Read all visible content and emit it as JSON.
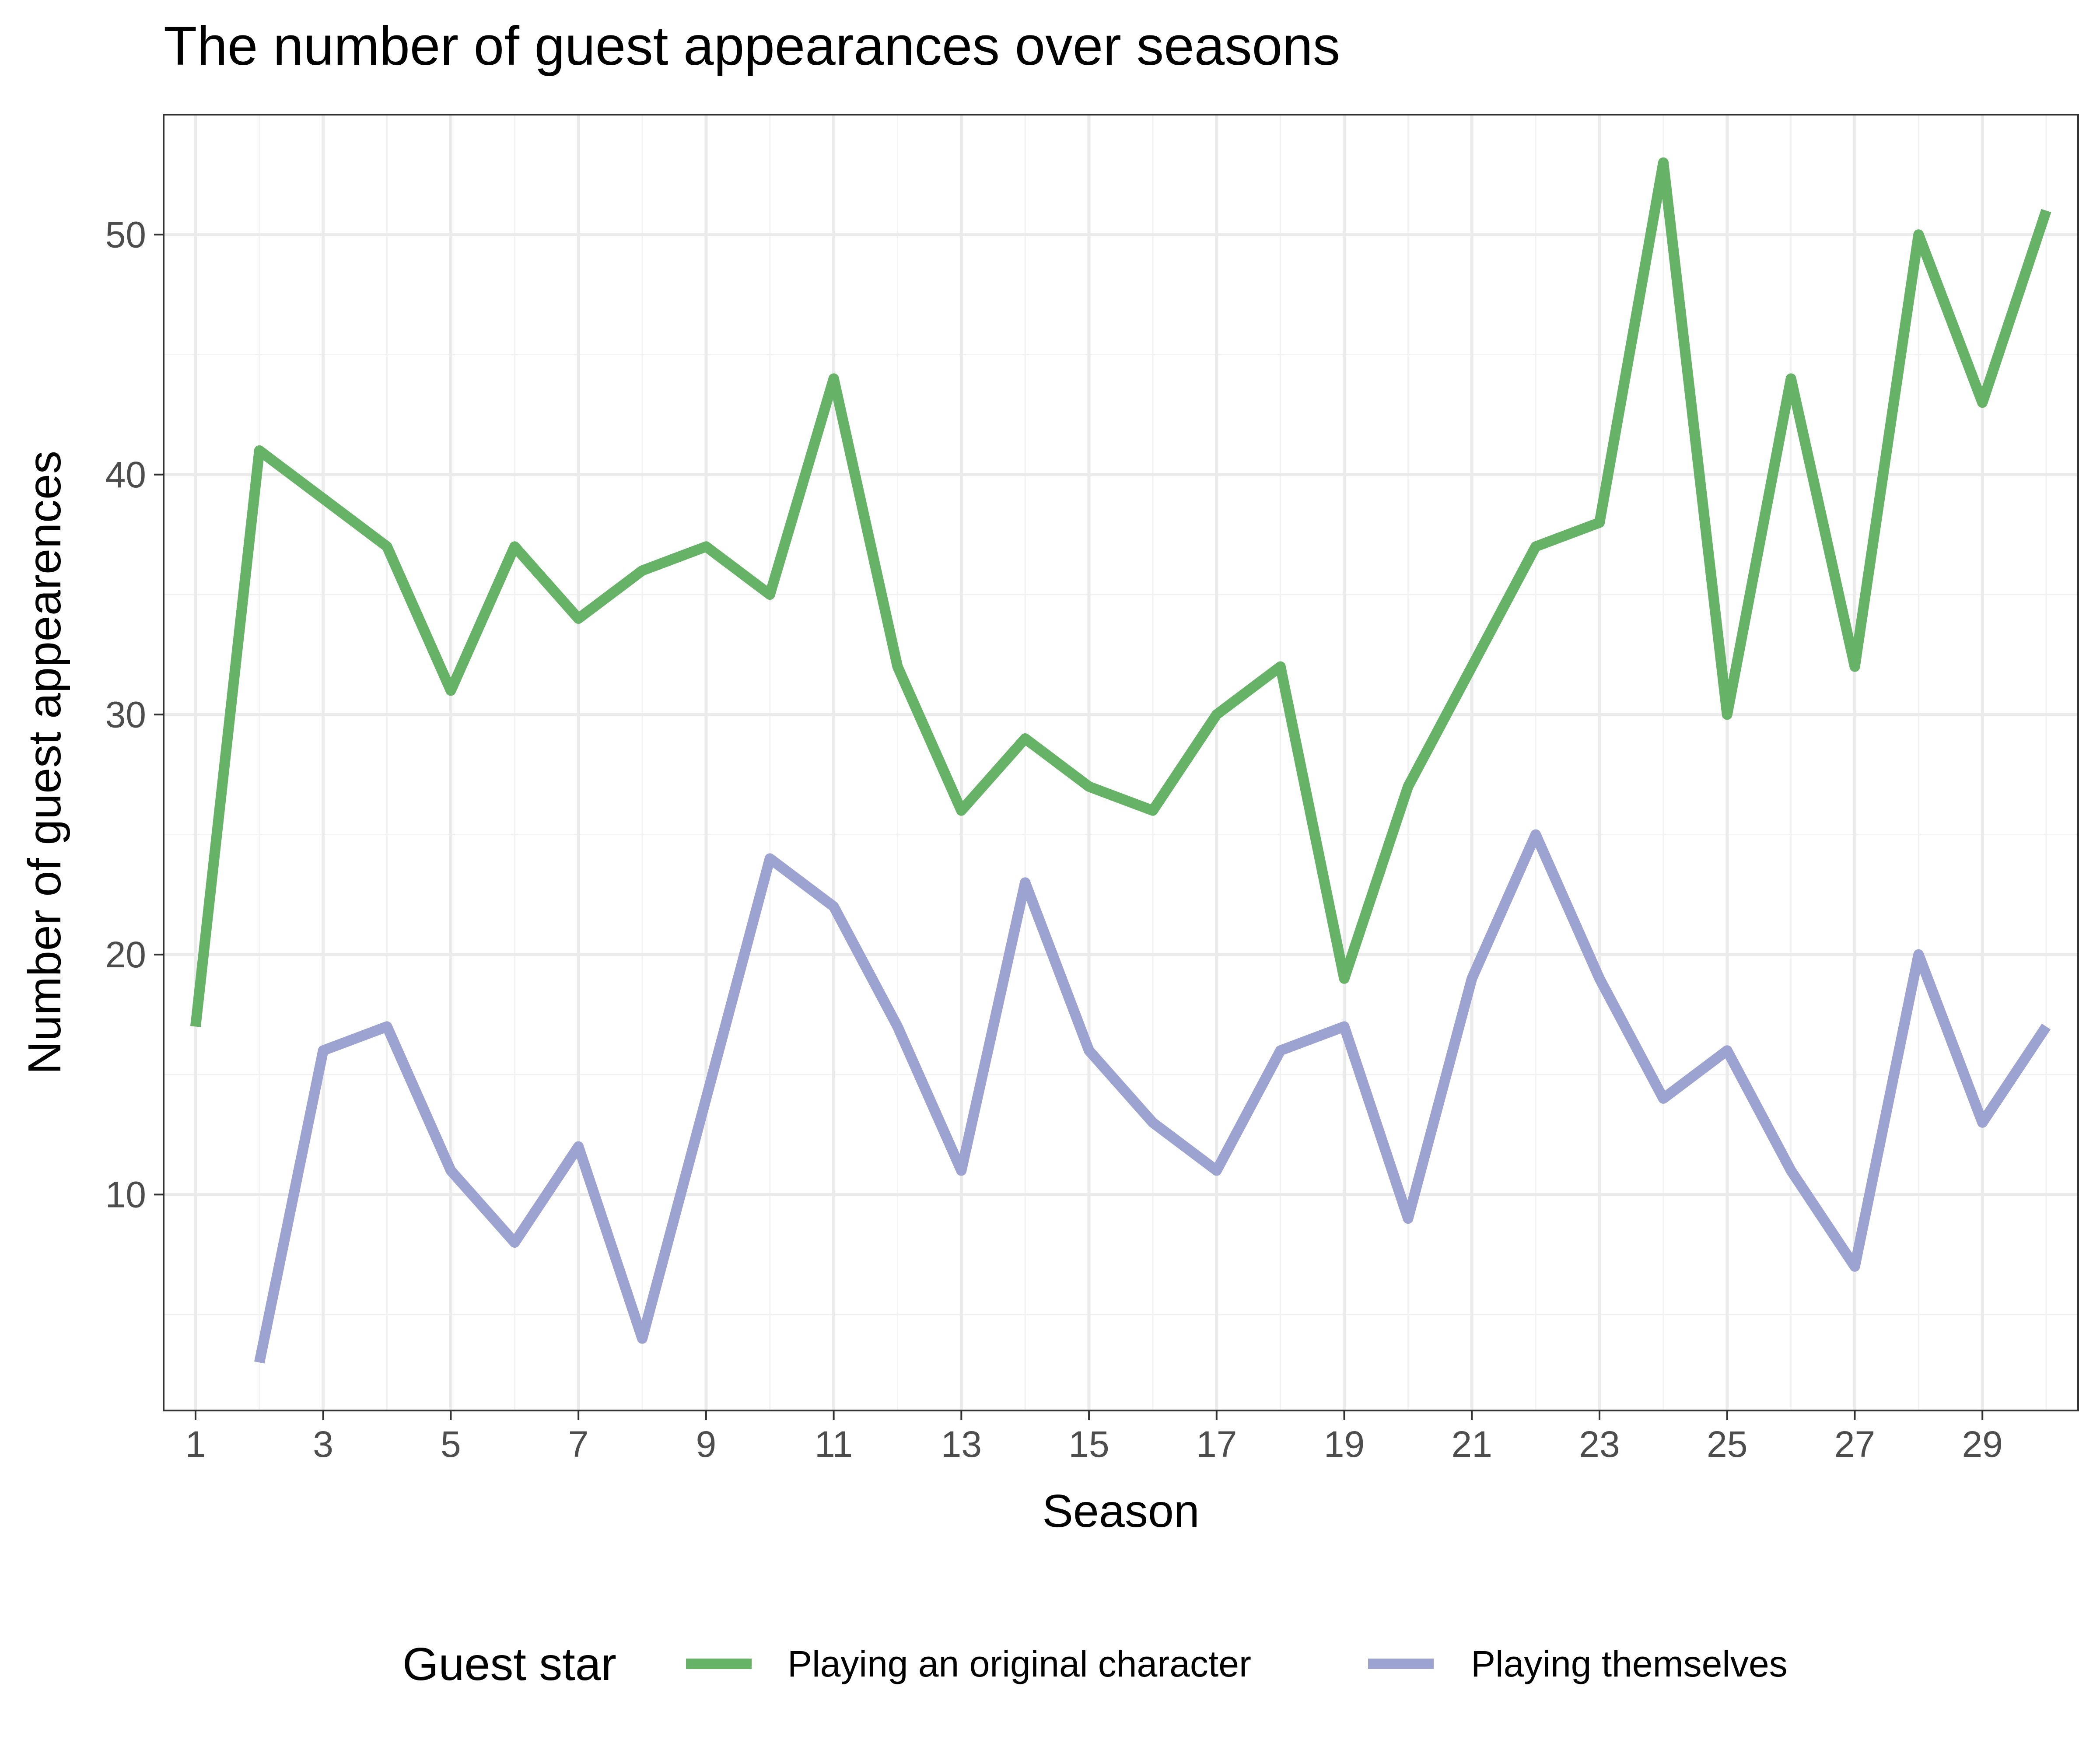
{
  "chart_data": {
    "type": "line",
    "title": "The number of guest appearances over seasons",
    "xlabel": "Season",
    "ylabel": "Number of guest appearences",
    "xlim": [
      0.5,
      30.5
    ],
    "ylim": [
      1,
      55
    ],
    "xticks": [
      1,
      3,
      5,
      7,
      9,
      11,
      13,
      15,
      17,
      19,
      21,
      23,
      25,
      27,
      29
    ],
    "yticks": [
      10,
      20,
      30,
      40,
      50
    ],
    "grid": true,
    "legend": {
      "title": "Guest star",
      "position": "bottom"
    },
    "series": [
      {
        "name": "Playing an original character",
        "color": "#66b266",
        "x": [
          1,
          2,
          3,
          4,
          5,
          6,
          7,
          8,
          9,
          10,
          11,
          12,
          13,
          14,
          15,
          16,
          17,
          18,
          19,
          20,
          21,
          22,
          23,
          24,
          25,
          26,
          27,
          28,
          29,
          30
        ],
        "y": [
          17,
          41,
          39,
          37,
          31,
          37,
          34,
          36,
          37,
          35,
          44,
          32,
          26,
          29,
          27,
          26,
          30,
          32,
          19,
          27,
          32,
          37,
          38,
          53,
          30,
          44,
          32,
          50,
          43,
          51
        ]
      },
      {
        "name": "Playing themselves",
        "color": "#9ca3d1",
        "x": [
          2,
          3,
          4,
          5,
          6,
          7,
          8,
          9,
          10,
          11,
          12,
          13,
          14,
          15,
          16,
          17,
          18,
          19,
          20,
          21,
          22,
          23,
          24,
          25,
          26,
          27,
          28,
          29,
          30
        ],
        "y": [
          3,
          16,
          17,
          11,
          8,
          12,
          4,
          14,
          24,
          22,
          17,
          11,
          23,
          16,
          13,
          11,
          16,
          17,
          9,
          19,
          25,
          19,
          14,
          16,
          11,
          7,
          20,
          13,
          17
        ]
      }
    ]
  }
}
